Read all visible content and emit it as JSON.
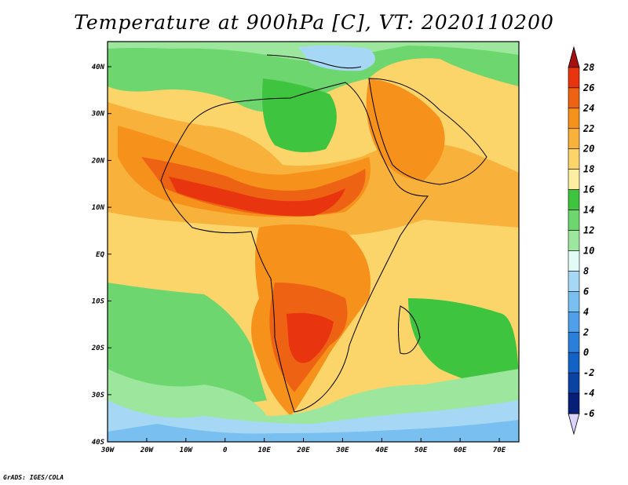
{
  "title": "Temperature at 900hPa [C], VT: 2020110200",
  "credit": "GrADS: IGES/COLA",
  "map": {
    "lon_labels": [
      "30W",
      "20W",
      "10W",
      "0",
      "10E",
      "20E",
      "30E",
      "40E",
      "50E",
      "60E",
      "70E"
    ],
    "lat_labels": [
      "40N",
      "30N",
      "20N",
      "10N",
      "EQ",
      "10S",
      "20S",
      "30S",
      "40S"
    ]
  },
  "colorbar": {
    "labels": [
      "28",
      "26",
      "24",
      "22",
      "20",
      "18",
      "16",
      "14",
      "12",
      "10",
      "8",
      "6",
      "4",
      "2",
      "0",
      "-2",
      "-4",
      "-6"
    ],
    "colors": [
      "#a50f0f",
      "#e8350f",
      "#ee6313",
      "#f6911c",
      "#f8b23b",
      "#fbd56a",
      "#fdeea1",
      "#3fc43f",
      "#6ed66e",
      "#9de69d",
      "#e3fbf7",
      "#a6d8f6",
      "#79c0f0",
      "#4f9fea",
      "#2a7fd9",
      "#1363c6",
      "#0a43a4",
      "#081f78",
      "#dcd2fa"
    ]
  }
}
